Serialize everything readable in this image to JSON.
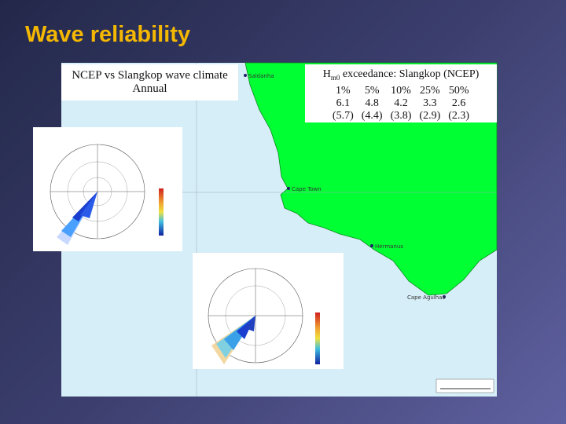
{
  "title": "Wave reliability",
  "caption": {
    "line1": "NCEP vs Slangkop wave climate",
    "line2": "Annual"
  },
  "table": {
    "header": {
      "symbol": "H",
      "subscript": "m0",
      "rest": " exceedance: Slangkop (NCEP)"
    },
    "rows": [
      [
        "1%",
        "5%",
        "10%",
        "25%",
        "50%"
      ],
      [
        "6.1",
        "4.8",
        "4.2",
        "3.3",
        "2.6"
      ],
      [
        "(5.7)",
        "(4.4)",
        "(3.8)",
        "(2.9)",
        "(2.3)"
      ]
    ]
  },
  "map_labels": [
    "Saldanha",
    "Cape Town",
    "Hermanus",
    "Cape Agulhas"
  ]
}
